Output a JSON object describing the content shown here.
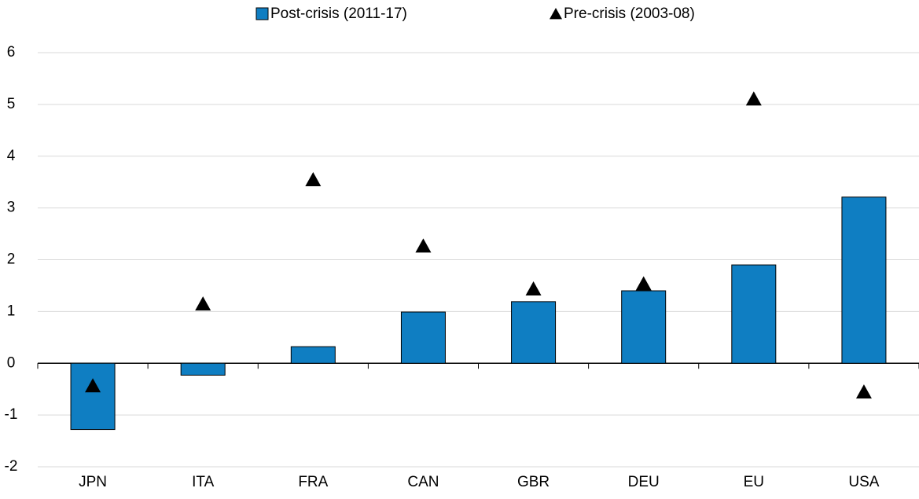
{
  "chart_data": {
    "type": "bar",
    "categories": [
      "JPN",
      "ITA",
      "FRA",
      "CAN",
      "GBR",
      "DEU",
      "EU",
      "USA"
    ],
    "series": [
      {
        "name": "Post-crisis (2011-17)",
        "color": "#0f7ec2",
        "type": "bar",
        "values": [
          -1.28,
          -0.23,
          0.32,
          0.99,
          1.19,
          1.4,
          1.9,
          3.21
        ]
      },
      {
        "name": "Pre-crisis (2003-08)",
        "color": "#000000",
        "type": "triangle",
        "values": [
          -0.44,
          1.14,
          3.54,
          2.26,
          1.43,
          1.53,
          5.1,
          -0.56
        ]
      }
    ],
    "ylim": [
      -2,
      6
    ],
    "yticks": [
      -2,
      -1,
      0,
      1,
      2,
      3,
      4,
      5,
      6
    ],
    "grid": true,
    "legend": "top"
  }
}
